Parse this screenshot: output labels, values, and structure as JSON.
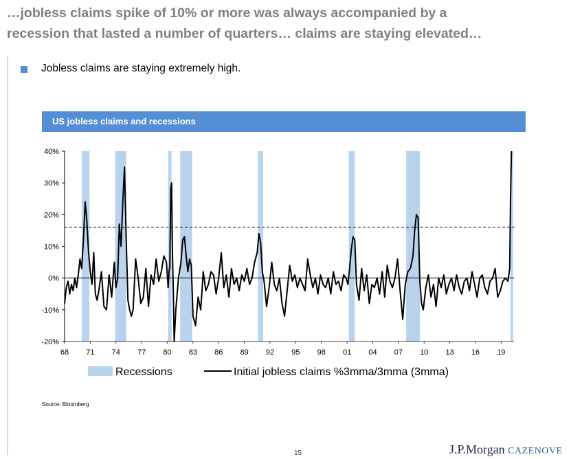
{
  "slide": {
    "headline_line1": "…jobless claims spike of 10% or more was always accompanied by a",
    "headline_line2": "recession that lasted a number of quarters… claims are staying elevated…",
    "bullet_text": "Jobless claims are staying extremely high.",
    "chart_title": "US jobless claims and recessions",
    "source": "Source: Bloomberg",
    "page_number": "15",
    "logo_jpmorgan": "J.P.Morgan",
    "logo_cazenove": "CAZENOVE",
    "colors": {
      "accent": "#558ed5",
      "recession": "#b9d3ec",
      "headline": "#808080",
      "line": "#000000"
    }
  },
  "chart_data": {
    "type": "line",
    "title": "US jobless claims and recessions",
    "x_tick_labels": [
      "68",
      "71",
      "74",
      "77",
      "80",
      "83",
      "86",
      "89",
      "92",
      "95",
      "98",
      "01",
      "04",
      "07",
      "10",
      "13",
      "16",
      "19"
    ],
    "x_tick_years": [
      1968,
      1971,
      1974,
      1977,
      1980,
      1983,
      1986,
      1989,
      1992,
      1995,
      1998,
      2001,
      2004,
      2007,
      2010,
      2013,
      2016,
      2019
    ],
    "xlim": [
      1968,
      2020.5
    ],
    "y_tick_labels": [
      "40%",
      "30%",
      "20%",
      "10%",
      "0%",
      "-10%",
      "-20%"
    ],
    "y_tick_values": [
      40,
      30,
      20,
      10,
      0,
      -10,
      -20
    ],
    "ylim": [
      -20,
      40
    ],
    "threshold_line": 16,
    "recessions": [
      [
        1970.0,
        1970.9
      ],
      [
        1973.9,
        1975.2
      ],
      [
        1980.1,
        1980.5
      ],
      [
        1981.5,
        1982.9
      ],
      [
        1990.6,
        1991.2
      ],
      [
        2001.2,
        2001.9
      ],
      [
        2007.9,
        2009.5
      ],
      [
        2020.1,
        2020.4
      ]
    ],
    "series": [
      {
        "name": "Initial jobless claims %3mma/3mma (3mma)",
        "x": [
          1968.0,
          1968.2,
          1968.4,
          1968.6,
          1968.8,
          1969.0,
          1969.2,
          1969.4,
          1969.6,
          1969.8,
          1970.0,
          1970.2,
          1970.4,
          1970.6,
          1970.8,
          1971.0,
          1971.2,
          1971.4,
          1971.6,
          1971.8,
          1972.0,
          1972.3,
          1972.6,
          1972.9,
          1973.2,
          1973.5,
          1973.8,
          1974.0,
          1974.2,
          1974.4,
          1974.6,
          1974.8,
          1975.0,
          1975.2,
          1975.4,
          1975.6,
          1975.8,
          1976.0,
          1976.3,
          1976.6,
          1976.9,
          1977.2,
          1977.5,
          1977.8,
          1978.1,
          1978.4,
          1978.7,
          1979.0,
          1979.3,
          1979.6,
          1979.9,
          1980.0,
          1980.1,
          1980.2,
          1980.3,
          1980.4,
          1980.5,
          1980.6,
          1980.7,
          1980.8,
          1981.0,
          1981.3,
          1981.6,
          1981.8,
          1982.0,
          1982.2,
          1982.4,
          1982.6,
          1982.8,
          1983.0,
          1983.3,
          1983.6,
          1983.9,
          1984.2,
          1984.5,
          1984.8,
          1985.1,
          1985.4,
          1985.7,
          1986.0,
          1986.3,
          1986.6,
          1986.9,
          1987.2,
          1987.5,
          1987.8,
          1988.1,
          1988.4,
          1988.7,
          1989.0,
          1989.3,
          1989.6,
          1989.9,
          1990.2,
          1990.5,
          1990.7,
          1990.9,
          1991.1,
          1991.3,
          1991.6,
          1991.9,
          1992.2,
          1992.5,
          1992.8,
          1993.1,
          1993.4,
          1993.7,
          1994.0,
          1994.3,
          1994.6,
          1994.9,
          1995.2,
          1995.5,
          1995.8,
          1996.1,
          1996.4,
          1996.7,
          1997.0,
          1997.3,
          1997.6,
          1997.9,
          1998.2,
          1998.5,
          1998.8,
          1999.1,
          1999.4,
          1999.7,
          2000.0,
          2000.3,
          2000.6,
          2000.9,
          2001.1,
          2001.3,
          2001.5,
          2001.7,
          2001.9,
          2002.1,
          2002.4,
          2002.7,
          2003.0,
          2003.3,
          2003.6,
          2003.9,
          2004.2,
          2004.5,
          2004.8,
          2005.1,
          2005.4,
          2005.7,
          2006.0,
          2006.3,
          2006.6,
          2006.9,
          2007.2,
          2007.5,
          2007.8,
          2008.1,
          2008.4,
          2008.7,
          2008.9,
          2009.1,
          2009.3,
          2009.5,
          2009.7,
          2009.9,
          2010.2,
          2010.5,
          2010.8,
          2011.1,
          2011.4,
          2011.7,
          2012.0,
          2012.3,
          2012.6,
          2012.9,
          2013.2,
          2013.5,
          2013.8,
          2014.1,
          2014.4,
          2014.7,
          2015.0,
          2015.3,
          2015.6,
          2015.9,
          2016.2,
          2016.5,
          2016.8,
          2017.1,
          2017.4,
          2017.7,
          2018.0,
          2018.3,
          2018.6,
          2018.9,
          2019.2,
          2019.5,
          2019.8,
          2020.0,
          2020.1,
          2020.2
        ],
        "y": [
          -8,
          -3,
          -1,
          -5,
          -2,
          -4,
          0,
          -3,
          1,
          6,
          3,
          12,
          24,
          18,
          8,
          2,
          -2,
          8,
          -5,
          -7,
          -4,
          2,
          -9,
          -10,
          1,
          -6,
          5,
          -3,
          0,
          17,
          10,
          24,
          35,
          12,
          -7,
          -10,
          -12,
          -10,
          6,
          0,
          -8,
          -6,
          3,
          -9,
          1,
          -2,
          6,
          -1,
          2,
          7,
          5,
          1,
          -3,
          2,
          4,
          28,
          30,
          8,
          -4,
          -20,
          -10,
          0,
          5,
          12,
          13,
          7,
          2,
          6,
          4,
          -12,
          -15,
          -6,
          -10,
          2,
          -4,
          -2,
          2,
          1,
          -5,
          0,
          8,
          -3,
          1,
          -6,
          3,
          -2,
          0,
          -4,
          1,
          -1,
          3,
          -2,
          0,
          5,
          8,
          14,
          11,
          2,
          -1,
          -9,
          -3,
          5,
          -2,
          -4,
          0,
          -8,
          -12,
          -4,
          4,
          -1,
          1,
          -3,
          0,
          -2,
          -4,
          6,
          1,
          -3,
          0,
          -5,
          1,
          -2,
          -3,
          0,
          -5,
          2,
          -2,
          -1,
          -4,
          1,
          0,
          -2,
          3,
          9,
          13,
          12,
          -2,
          -7,
          3,
          -4,
          1,
          -8,
          -2,
          -3,
          0,
          -5,
          2,
          -6,
          4,
          -1,
          -3,
          0,
          6,
          -4,
          -13,
          -2,
          2,
          3,
          7,
          15,
          20,
          19,
          -1,
          -8,
          -10,
          -3,
          1,
          -6,
          -2,
          -9,
          0,
          -3,
          1,
          -5,
          -2,
          0,
          -4,
          1,
          -3,
          -5,
          -1,
          0,
          -4,
          2,
          -2,
          -6,
          0,
          1,
          -3,
          -5,
          -1,
          0,
          3,
          -6,
          -4,
          -1,
          0,
          -1,
          3,
          25,
          40
        ]
      }
    ],
    "legend": [
      {
        "label": "Recessions",
        "kind": "band"
      },
      {
        "label": "Initial jobless claims %3mma/3mma (3mma)",
        "kind": "line"
      }
    ],
    "legend_position": "bottom"
  }
}
